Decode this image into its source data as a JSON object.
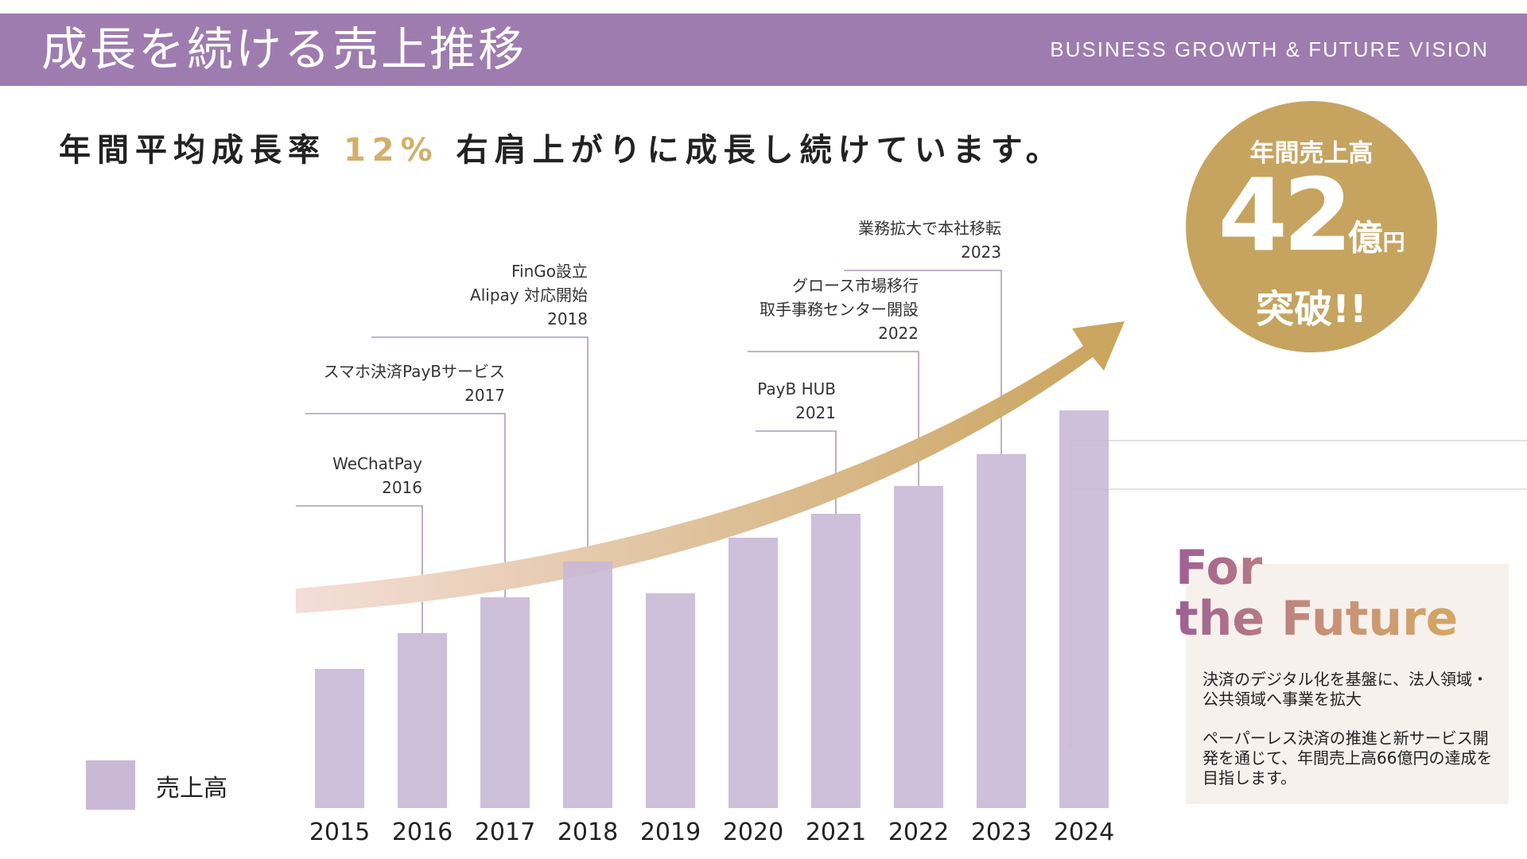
{
  "header": {
    "title": "成長を続ける売上推移",
    "subtitle": "BUSINESS GROWTH & FUTURE VISION"
  },
  "headline": {
    "before": "年間平均成長率",
    "accent": "12%",
    "after": "右肩上がりに成長し続けています。"
  },
  "chart_data": {
    "type": "bar",
    "title": "",
    "categories": [
      "2015",
      "2016",
      "2017",
      "2018",
      "2019",
      "2020",
      "2021",
      "2022",
      "2023",
      "2024"
    ],
    "series": [
      {
        "name": "売上高",
        "values": [
          17.5,
          22,
          26.5,
          31,
          27,
          34,
          37,
          40.5,
          44.5,
          50
        ]
      }
    ],
    "xlabel": "",
    "ylabel": "",
    "ylim": [
      0,
      50
    ],
    "legend": "bottom-left",
    "grid": false,
    "milestones": [
      {
        "year": "2016",
        "label": "WeChatPay\n2016"
      },
      {
        "year": "2017",
        "label": "スマホ決済PayBサービス\n2017"
      },
      {
        "year": "2018",
        "label": "FinGo設立\nAlipay 対応開始\n2018"
      },
      {
        "year": "2021",
        "label": "PayB HUB\n2021"
      },
      {
        "year": "2022",
        "label": "グロース市場移行\n取手事務センター開設\n2022"
      },
      {
        "year": "2023",
        "label": "業務拡大で本社移転\n2023"
      }
    ]
  },
  "legend": {
    "label": "売上高"
  },
  "badge": {
    "label": "年間売上高",
    "number": "42",
    "unit": "億",
    "unit_small": "円",
    "suffix": "突破!!"
  },
  "future": {
    "title_line1": "For",
    "title_line2": "the Future",
    "paragraph1": "決済のデジタル化を基盤に、法人領域・公共領域へ事業を拡大",
    "paragraph2": "ペーパーレス決済の推進と新サービス開発を通じて、年間売上高66億円の達成を目指します。"
  },
  "colors": {
    "header": "#9e7caf",
    "bar": "#c9b8d6",
    "accent_gold": "#c6a45f",
    "arrow_start": "#f4ded8",
    "arrow_end": "#c9a45c",
    "leader_line": "#9a86a8"
  }
}
